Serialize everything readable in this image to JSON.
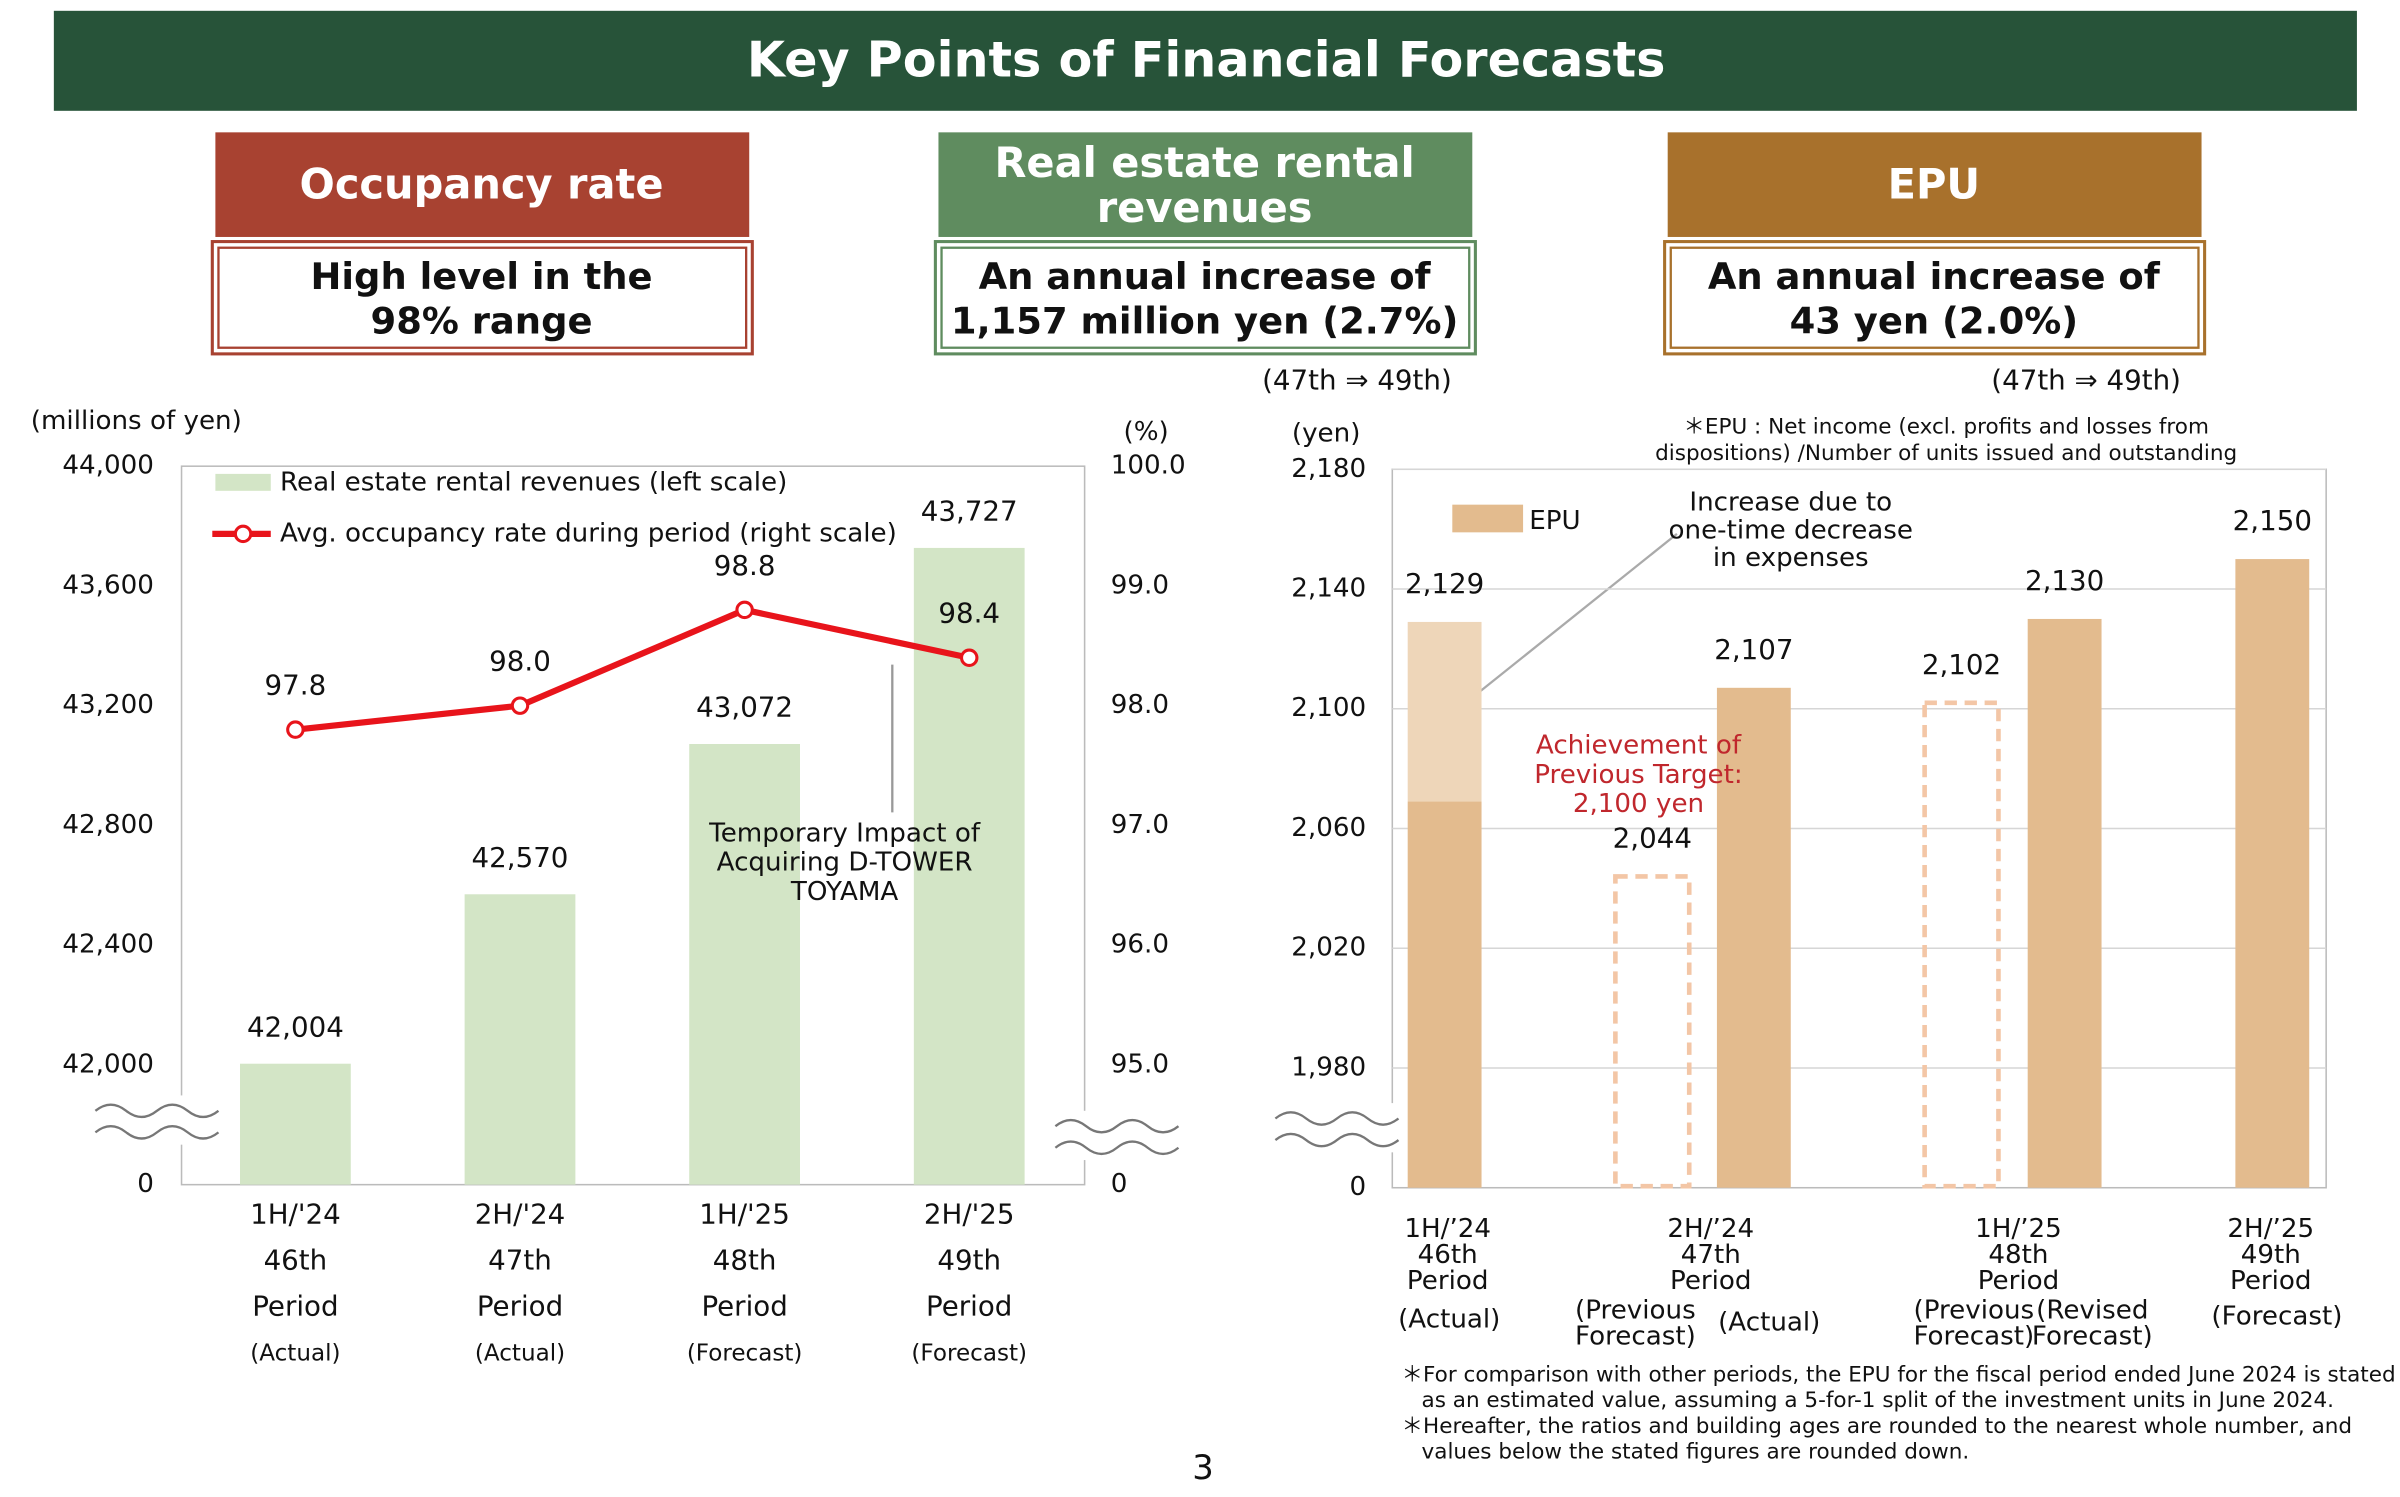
{
  "header": {
    "title": "Key Points of Financial Forecasts"
  },
  "points": [
    {
      "heading": [
        "Occupancy rate"
      ],
      "summary": [
        "High level in the",
        "98% range"
      ],
      "color": "#a84231"
    },
    {
      "heading": [
        "Real estate rental",
        "revenues"
      ],
      "summary": [
        "An annual increase of",
        "1,157 million yen (2.7%)"
      ],
      "note": "(47th ⇒ 49th)",
      "color": "#5f8c5f"
    },
    {
      "heading": [
        "EPU"
      ],
      "summary": [
        "An annual increase of",
        "43 yen (2.0%)"
      ],
      "note": "(47th ⇒ 49th)",
      "color": "#a8712c"
    }
  ],
  "chart_data": [
    {
      "type": "bar_line",
      "y_label": "(millions of yen)",
      "y2_label": "(%)",
      "categories": [
        [
          "1H/'24",
          "46th",
          "Period",
          "(Actual)"
        ],
        [
          "2H/'24",
          "47th",
          "Period",
          "(Actual)"
        ],
        [
          "1H/'25",
          "48th",
          "Period",
          "(Forecast)"
        ],
        [
          "2H/'25",
          "49th",
          "Period",
          "(Forecast)"
        ]
      ],
      "ylim": [
        0,
        44000
      ],
      "yticks": [
        0,
        {
          "value": 42000,
          "label": "42,000"
        },
        {
          "value": 42400,
          "label": "42,400"
        },
        {
          "value": 42800,
          "label": "42,800"
        },
        {
          "value": 43200,
          "label": "43,200"
        },
        {
          "value": 43600,
          "label": "43,600"
        },
        {
          "value": 44000,
          "label": "44,000"
        }
      ],
      "y2lim": [
        0,
        100
      ],
      "y2ticks": [
        0,
        {
          "value": 95,
          "label": "95.0"
        },
        {
          "value": 96,
          "label": "96.0"
        },
        {
          "value": 97,
          "label": "97.0"
        },
        {
          "value": 98,
          "label": "98.0"
        },
        {
          "value": 99,
          "label": "99.0"
        },
        {
          "value": 100,
          "label": "100.0"
        }
      ],
      "axis_break": true,
      "grid": false,
      "series": [
        {
          "name": "Real estate rental revenues (left scale)",
          "type": "bar",
          "color": "#d3e5c6",
          "values": [
            42004,
            42570,
            43072,
            43727
          ],
          "value_labels": [
            "42,004",
            "42,570",
            "43,072",
            "43,727"
          ]
        },
        {
          "name": "Avg. occupancy rate during period (right scale)",
          "type": "line",
          "axis": "y2",
          "color": "#e8141b",
          "values": [
            97.8,
            98.0,
            98.8,
            98.4
          ],
          "value_labels": [
            "97.8",
            "98.0",
            "98.8",
            "98.4"
          ]
        }
      ],
      "annotations": [
        {
          "text": [
            "Temporary Impact of",
            "Acquiring D-TOWER",
            "TOYAMA"
          ]
        }
      ]
    },
    {
      "type": "bar",
      "y_label": "(yen)",
      "note": [
        "＊EPU : Net income (excl. profits and losses from",
        "dispositions) /Number of units issued and outstanding"
      ],
      "groups": [
        [
          "1H/’24",
          "46th",
          "Period"
        ],
        [
          "2H/’24",
          "47th",
          "Period"
        ],
        [
          "1H/’25",
          "48th",
          "Period"
        ],
        [
          "2H/’25",
          "49th",
          "Period"
        ]
      ],
      "categories": [
        [
          "(Actual)"
        ],
        [
          "(Previous",
          "Forecast)"
        ],
        [
          "(Actual)"
        ],
        [
          "(Previous",
          "Forecast)"
        ],
        [
          "(Revised",
          "Forecast)"
        ],
        [
          "(Forecast)"
        ]
      ],
      "ylim": [
        0,
        2180
      ],
      "yticks": [
        0,
        {
          "value": 1980,
          "label": "1,980"
        },
        {
          "value": 2020,
          "label": "2,020"
        },
        {
          "value": 2060,
          "label": "2,060"
        },
        {
          "value": 2100,
          "label": "2,100"
        },
        {
          "value": 2140,
          "label": "2,140"
        },
        {
          "value": 2180,
          "label": "2,180"
        }
      ],
      "axis_break": true,
      "grid": true,
      "series": [
        {
          "name": "EPU",
          "color": "#e3bb8e",
          "highlight_color": "#eed6b9",
          "dashed_color": "#f3c6a6",
          "values": [
            2129,
            2044,
            2107,
            2102,
            2130,
            2150
          ],
          "value_labels": [
            "2,129",
            "2,044",
            "2,107",
            "2,102",
            "2,130",
            "2,150"
          ],
          "styles": [
            "solid",
            "dashed",
            "solid",
            "dashed",
            "solid",
            "solid"
          ],
          "base_values": [
            2069,
            null,
            null,
            null,
            null,
            null
          ]
        }
      ],
      "annotations": [
        {
          "text": [
            "Increase due to",
            "one-time decrease",
            "in expenses"
          ]
        },
        {
          "text": [
            "Achievement of",
            "Previous Target:",
            "2,100 yen"
          ],
          "color": "#c0272d"
        }
      ]
    }
  ],
  "footnotes": [
    [
      "＊For comparison with other periods, the EPU for the fiscal period ended June 2024 is stated",
      "as an estimated value, assuming a 5-for-1 split of the investment units in June 2024."
    ],
    [
      "＊Hereafter, the ratios and building ages are rounded to the nearest whole number, and",
      "values below the stated figures are rounded down."
    ]
  ],
  "page_number": "3"
}
